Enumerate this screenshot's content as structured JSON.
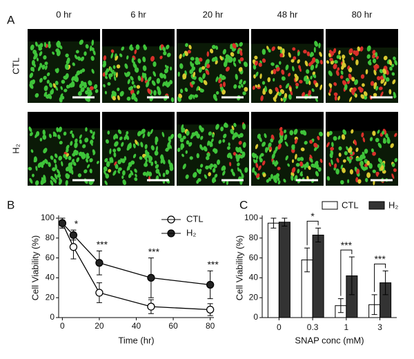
{
  "panels": {
    "a": "A",
    "b": "B",
    "c": "C"
  },
  "figure_a": {
    "times": [
      "0 hr",
      "6 hr",
      "20 hr",
      "48 hr",
      "80 hr"
    ],
    "rows": [
      "CTL",
      "H₂"
    ]
  },
  "chart_data": [
    {
      "type": "line",
      "x_label": "Time (hr)",
      "y_label": "Cell Viability (%)",
      "x": [
        0,
        6,
        20,
        48,
        80
      ],
      "series": [
        {
          "name": "CTL",
          "color": "#ffffff",
          "values": [
            95,
            71,
            25,
            11,
            8
          ],
          "errors": [
            5,
            12,
            10,
            7,
            6
          ]
        },
        {
          "name": "H₂",
          "color": "#222222",
          "values": [
            95,
            83,
            55,
            40,
            33
          ],
          "errors": [
            5,
            5,
            12,
            20,
            14
          ]
        }
      ],
      "significance": [
        null,
        "*",
        "***",
        "***",
        "***"
      ],
      "xlim": [
        -2,
        82
      ],
      "xticks": [
        0,
        20,
        40,
        60,
        80
      ],
      "ylim": [
        0,
        100
      ],
      "yticks": [
        0,
        20,
        40,
        60,
        80,
        100
      ],
      "legend": "right"
    },
    {
      "type": "bar",
      "x_label": "SNAP conc (mM)",
      "y_label": "Cell Viability (%)",
      "categories": [
        "0",
        "0.3",
        "1",
        "3"
      ],
      "series": [
        {
          "name": "CTL",
          "color": "#ffffff",
          "values": [
            95,
            58,
            12,
            13
          ],
          "errors": [
            5,
            12,
            7,
            10
          ]
        },
        {
          "name": "H₂",
          "color": "#333333",
          "values": [
            96,
            83,
            42,
            35
          ],
          "errors": [
            4,
            7,
            19,
            12
          ]
        }
      ],
      "significance": [
        null,
        "*",
        "***",
        "***"
      ],
      "ylim": [
        0,
        100
      ],
      "yticks": [
        0,
        20,
        40,
        60,
        80,
        100
      ],
      "legend": "top"
    }
  ]
}
